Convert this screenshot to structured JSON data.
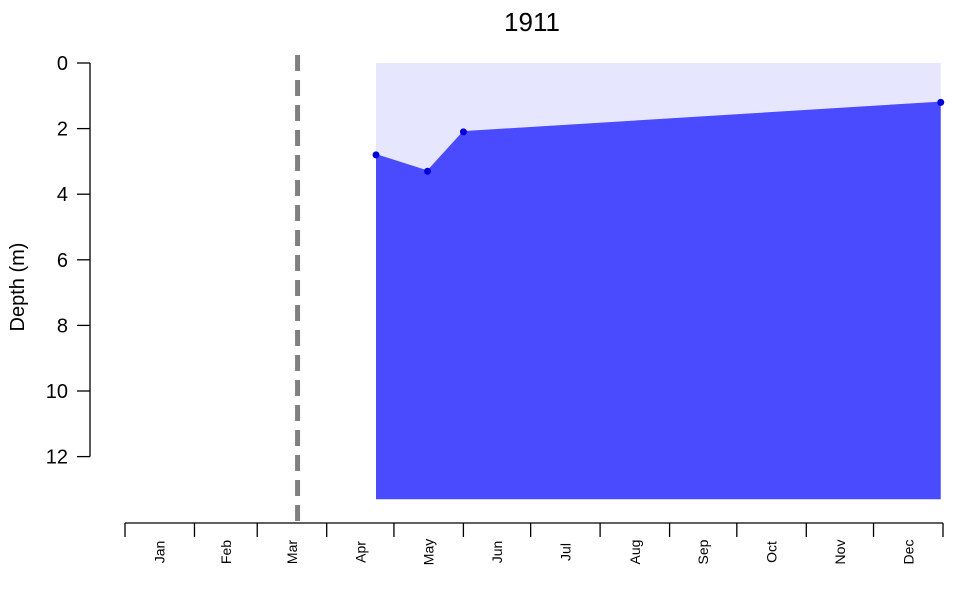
{
  "chart_data": {
    "type": "area",
    "title": "1911",
    "ylabel": "Depth (m)",
    "xlabel": "",
    "y_inverted": true,
    "ylim": [
      0,
      13.3
    ],
    "yticks": [
      0,
      2,
      4,
      6,
      8,
      10,
      12
    ],
    "ytick_labels": [
      "0",
      "2",
      "4",
      "6",
      "8",
      "10",
      "12"
    ],
    "xtick_labels": [
      "Jan",
      "Feb",
      "Mar",
      "Apr",
      "May",
      "Jun",
      "Jul",
      "Aug",
      "Sep",
      "Oct",
      "Nov",
      "Dec"
    ],
    "x_domain": [
      "1911-01-01",
      "1912-01-01"
    ],
    "ice_off_date": "1911-03-19",
    "area_period": [
      "1911-04-23",
      "1911-12-31"
    ],
    "total_depth": 13.3,
    "series": [
      {
        "points": [
          {
            "x": "1911-04-23",
            "y": 2.8
          },
          {
            "x": "1911-05-16",
            "y": 3.3
          },
          {
            "x": "1911-06-01",
            "y": 2.1
          },
          {
            "x": "1911-12-31",
            "y": 1.2
          }
        ]
      }
    ],
    "grid": false,
    "legend": "none",
    "colors": {
      "upper_layer": "#e6e6ff",
      "lower_layer": "#4a4aff",
      "points": "#0000dd",
      "ice_off_line": "#808080"
    }
  }
}
